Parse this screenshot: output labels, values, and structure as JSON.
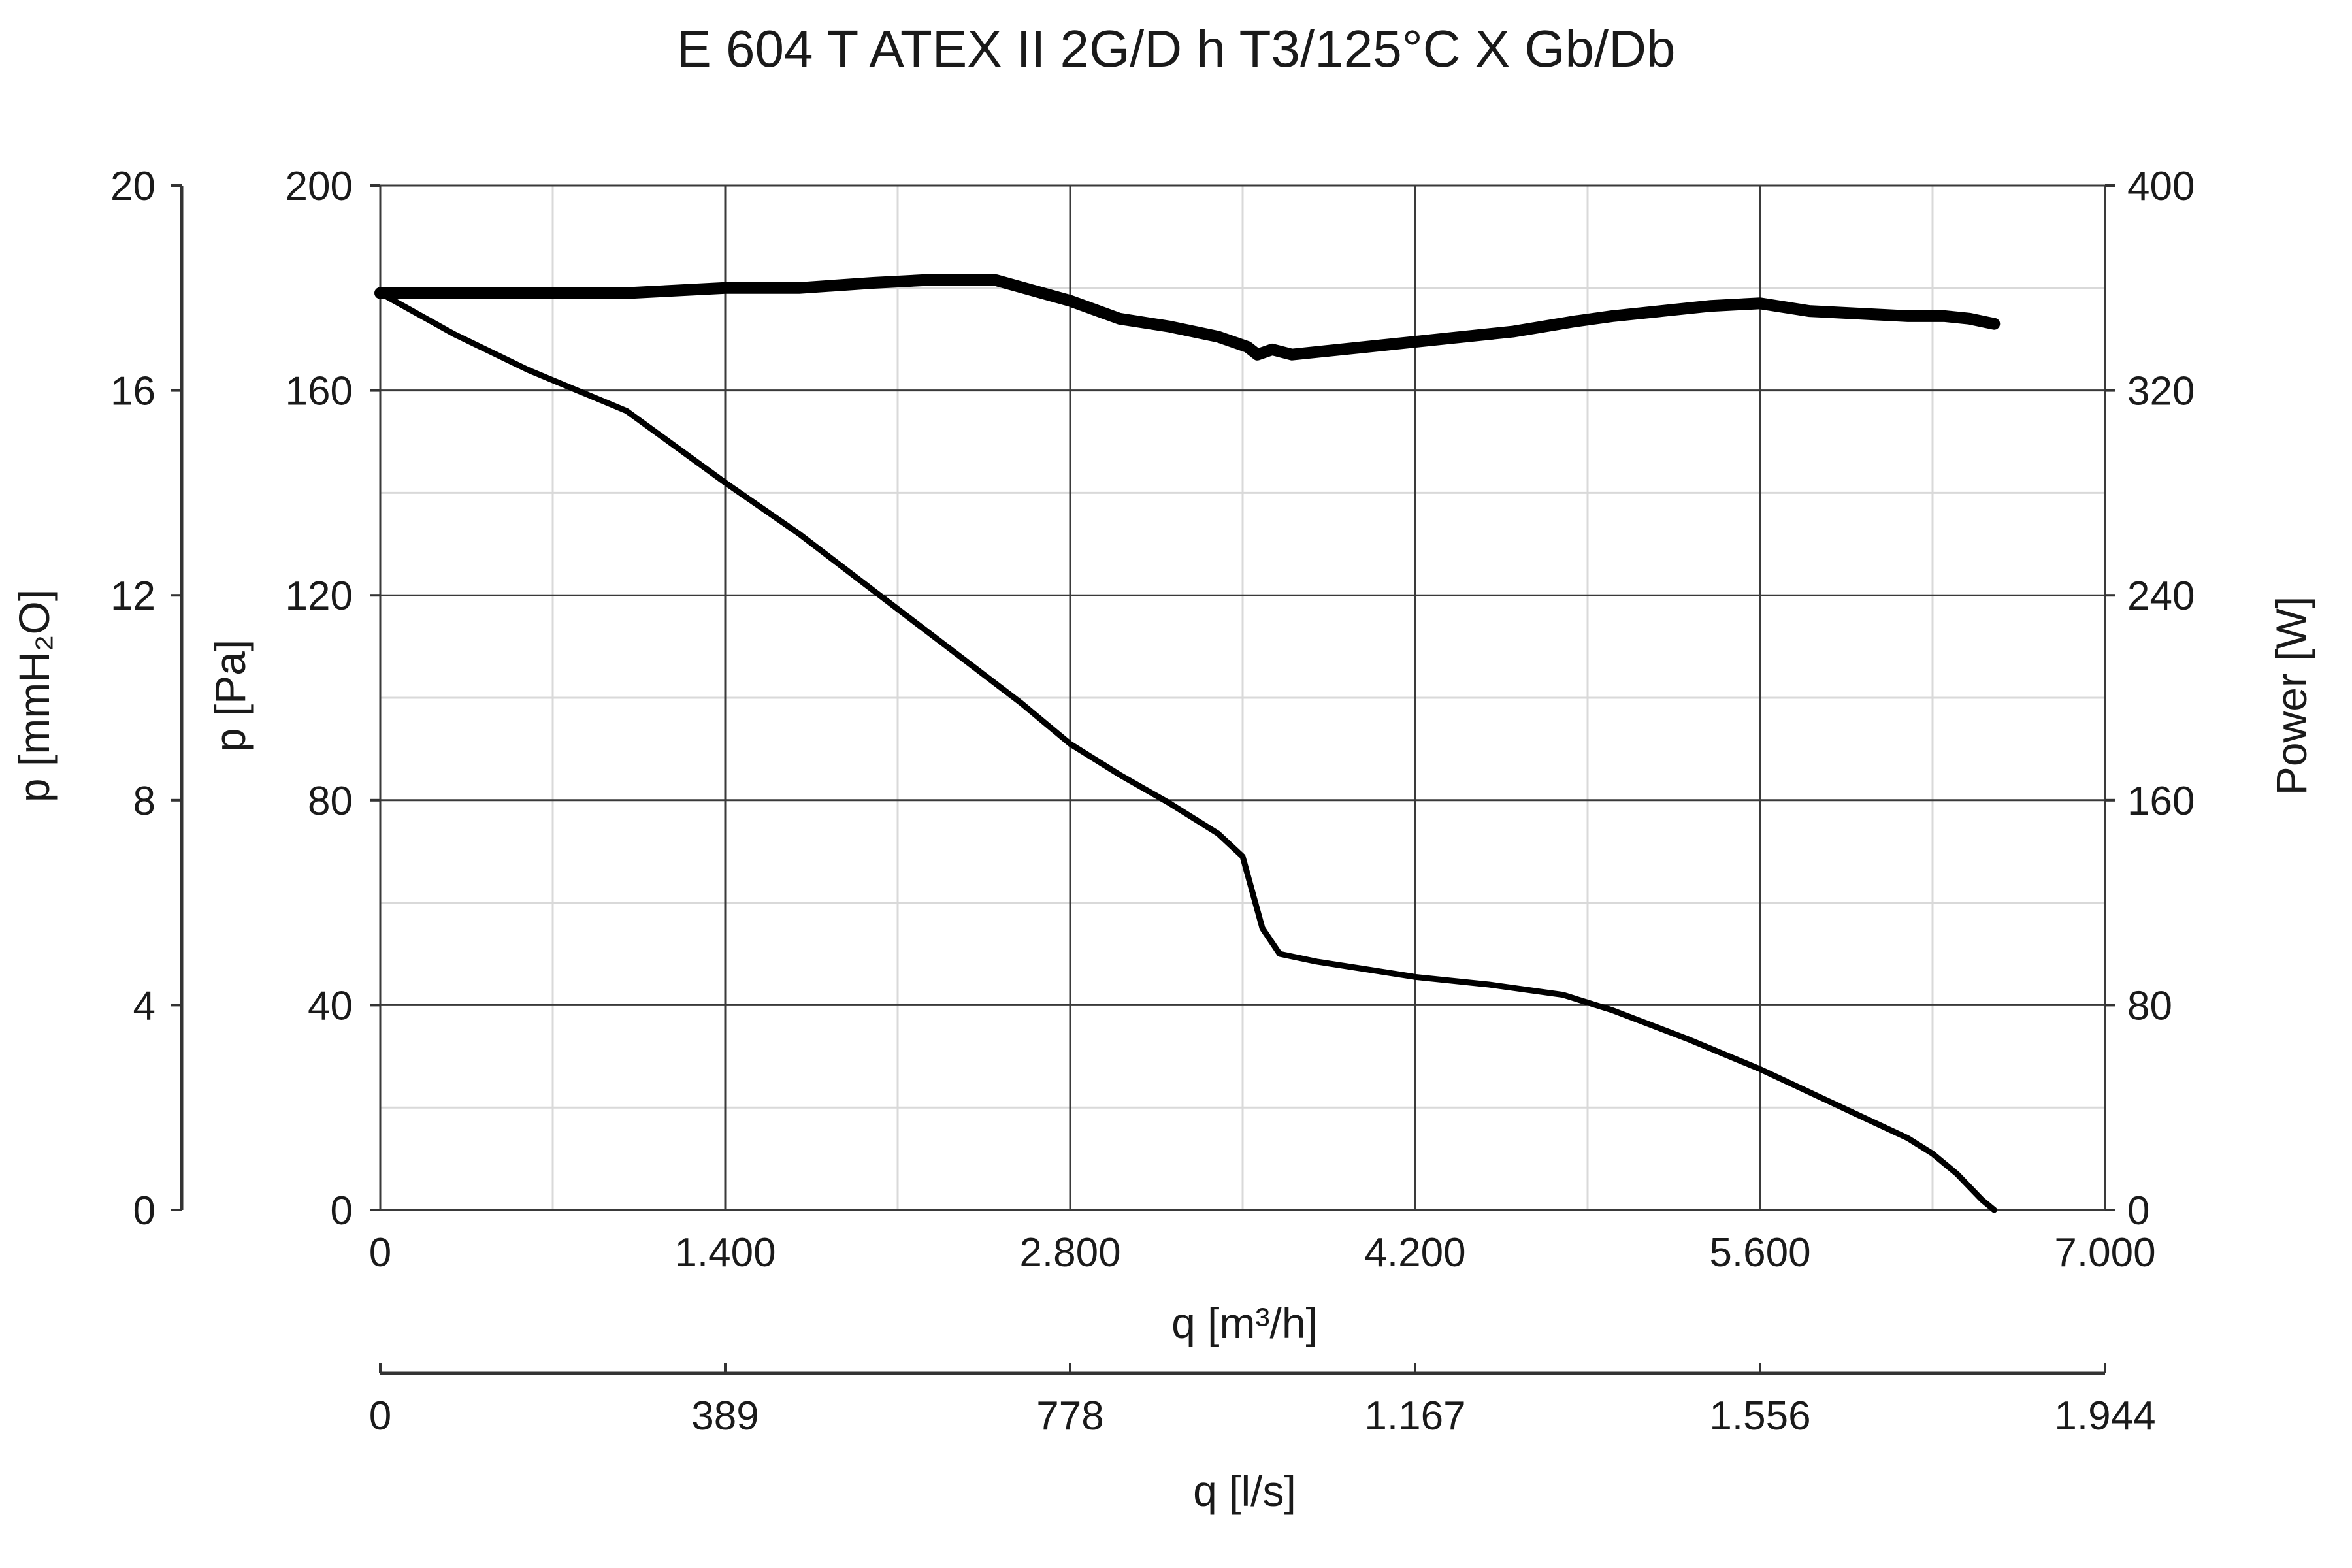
{
  "chart_data": {
    "type": "line",
    "title": "E 604 T ATEX II 2G/D h T3/125°C X Gb/Db",
    "xlabel": "q [m³/h]",
    "x_secondary_label": "q [l/s]",
    "ylabel": "p [Pa]",
    "y_secondary_label": "p [mmH₂O]",
    "y2label": "Power [W]",
    "xlim": [
      0,
      7000
    ],
    "ylim": [
      0,
      200
    ],
    "y2lim": [
      0,
      400
    ],
    "x_tick_labels": [
      "0",
      "1.400",
      "2.800",
      "4.200",
      "5.600",
      "7.000"
    ],
    "x_secondary_tick_labels": [
      "0",
      "389",
      "778",
      "1.167",
      "1.556",
      "1.944"
    ],
    "y_tick_labels": [
      "0",
      "40",
      "80",
      "120",
      "160",
      "200"
    ],
    "y_secondary_tick_labels": [
      "0",
      "4",
      "8",
      "12",
      "16",
      "20"
    ],
    "y2_tick_labels": [
      "0",
      "80",
      "160",
      "240",
      "320",
      "400"
    ],
    "grid": true,
    "line_color": "#000000",
    "series": [
      {
        "axis": "left",
        "x": [
          0,
          300,
          600,
          1000,
          1400,
          1700,
          2000,
          2300,
          2600,
          2800,
          3000,
          3200,
          3400,
          3500,
          3540,
          3580,
          3650,
          3800,
          4000,
          4200,
          4500,
          4800,
          5000,
          5300,
          5600,
          5800,
          6000,
          6200,
          6300,
          6400,
          6500,
          6550
        ],
        "y": [
          179,
          171,
          164,
          156,
          142,
          132,
          121,
          110,
          99,
          91,
          85,
          79.5,
          73.5,
          69,
          62,
          55,
          50,
          48.5,
          47,
          45.5,
          44,
          42,
          39,
          33.5,
          27.5,
          23,
          18.5,
          14,
          11,
          7,
          2,
          0
        ]
      },
      {
        "axis": "right",
        "x": [
          0,
          500,
          1000,
          1400,
          1700,
          2000,
          2200,
          2500,
          2800,
          3000,
          3200,
          3400,
          3520,
          3560,
          3620,
          3700,
          4000,
          4300,
          4600,
          4850,
          5000,
          5200,
          5400,
          5600,
          5800,
          6000,
          6200,
          6350,
          6450,
          6550
        ],
        "y": [
          358,
          358,
          358,
          360,
          360,
          362,
          363,
          363,
          355,
          348,
          345,
          341,
          337,
          334,
          336,
          334,
          337,
          340,
          343,
          347,
          349,
          351,
          353,
          354,
          351,
          350,
          349,
          349,
          348,
          346
        ]
      }
    ]
  }
}
